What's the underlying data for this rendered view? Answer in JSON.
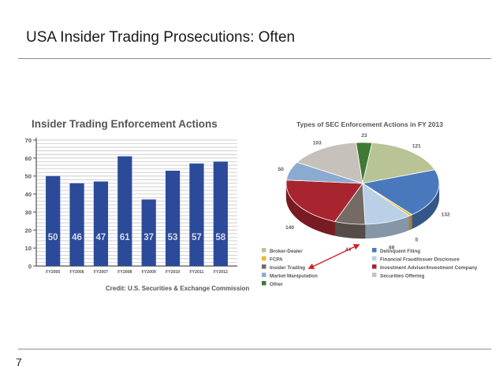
{
  "slide": {
    "title": "USA Insider Trading Prosecutions: Often",
    "page_number": "7"
  },
  "chart_data": [
    {
      "type": "bar",
      "title": "Insider Trading Enforcement Actions",
      "categories": [
        "FY2005",
        "FY2006",
        "FY2007",
        "FY2008",
        "FY2009",
        "FY2010",
        "FY2011",
        "FY2012"
      ],
      "values": [
        50,
        46,
        47,
        61,
        37,
        53,
        57,
        58
      ],
      "value_labels": [
        "50",
        "46",
        "47",
        "61",
        "37",
        "53",
        "57",
        "58"
      ],
      "ylim": [
        0,
        70
      ],
      "yticks": [
        0,
        10,
        20,
        30,
        40,
        50,
        60,
        70
      ],
      "ytick_labels": [
        "0",
        "10",
        "20",
        "30",
        "40",
        "50",
        "60",
        "70"
      ],
      "grid": true,
      "bar_color": "#2b4a9a",
      "credit": "Credit: U.S. Securities & Exchange Commission"
    },
    {
      "type": "pie",
      "title": "Types of SEC Enforcement Actions in FY 2013",
      "slices": [
        {
          "name": "Other",
          "value": 23,
          "label": "23",
          "color": "#3f7a35"
        },
        {
          "name": "Broker-Dealer",
          "value": 121,
          "label": "121",
          "color": "#b8c496"
        },
        {
          "name": "Delinquent Filing",
          "value": 132,
          "label": "132",
          "color": "#4a78bd"
        },
        {
          "name": "FCPA",
          "value": 5,
          "label": "5",
          "color": "#e8b83a"
        },
        {
          "name": "Financial Fraud/Issuer Disclosure",
          "value": 68,
          "label": "68",
          "color": "#b9d0e6"
        },
        {
          "name": "Insider Trading",
          "value": 44,
          "label": "44",
          "color": "#766a66"
        },
        {
          "name": "Investment Adviser/Investment Company",
          "value": 140,
          "label": "140",
          "color": "#a82530"
        },
        {
          "name": "Market Manipulation",
          "value": 50,
          "label": "50",
          "color": "#8aaad0"
        },
        {
          "name": "Securities Offering",
          "value": 103,
          "label": "103",
          "color": "#c7c1bb"
        }
      ],
      "legend": {
        "placement": "bottom",
        "left_column": [
          "Broker-Dealer",
          "FCPA",
          "Insider Trading",
          "Market Manipulation",
          "Other"
        ],
        "right_column": [
          "Delinquent Filing",
          "Financial Fraud/Issuer Disclosure",
          "Investment Adviser/Investment Company",
          "Securities Offering"
        ]
      },
      "annotation": {
        "type": "arrow",
        "from_legend_item": "Insider Trading",
        "to_slice": "Insider Trading",
        "color": "#d21f26"
      }
    }
  ]
}
